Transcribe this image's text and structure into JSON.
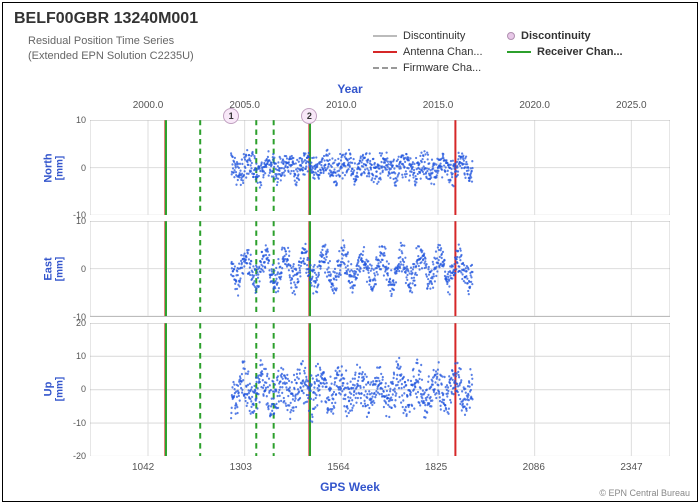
{
  "title": "BELF00GBR 13240M001",
  "subtitle_line1": "Residual Position Time Series",
  "subtitle_line2": "(Extended EPN Solution C2235U)",
  "top_axis_label": "Year",
  "bottom_axis_label": "GPS Week",
  "credit": "© EPN Central Bureau",
  "legend": {
    "items": [
      {
        "type": "line",
        "style": "solid",
        "color": "#bbbbbb",
        "label": "Discontinuity"
      },
      {
        "type": "marker",
        "color": "#e8c8e8",
        "label": "Discontinuity",
        "bold": true
      },
      {
        "type": "line",
        "style": "solid",
        "color": "#d62728",
        "label": "Antenna Chan..."
      },
      {
        "type": "line",
        "style": "solid",
        "color": "#2ca02c",
        "label": "Receiver Chan...",
        "bold": true
      },
      {
        "type": "line",
        "style": "dashed",
        "color": "#999999",
        "label": "Firmware Cha..."
      }
    ]
  },
  "year_axis": {
    "min": 1997,
    "max": 2027,
    "ticks": [
      2000,
      2005,
      2010,
      2015,
      2020,
      2025
    ]
  },
  "week_axis": {
    "min": 900,
    "max": 2450,
    "ticks": [
      1042,
      1303,
      1564,
      1825,
      2086,
      2347
    ]
  },
  "panels": [
    {
      "name": "North",
      "unit": "[mm]",
      "ylim": [
        -10,
        10
      ],
      "yticks": [
        -10,
        0,
        10
      ],
      "noise": 2.2,
      "amp": 1.0
    },
    {
      "name": "East",
      "unit": "[mm]",
      "ylim": [
        -10,
        10
      ],
      "yticks": [
        -10,
        0,
        10
      ],
      "noise": 2.5,
      "amp": 2.5
    },
    {
      "name": "Up",
      "unit": "[mm]",
      "ylim": [
        -20,
        20
      ],
      "yticks": [
        -20,
        -10,
        0,
        10,
        20
      ],
      "noise": 5.0,
      "amp": 3.0
    }
  ],
  "data_range_years": [
    2004.3,
    2016.8
  ],
  "event_lines": [
    {
      "year": 2000.9,
      "color": "#d62728",
      "style": "solid"
    },
    {
      "year": 2000.93,
      "color": "#2ca02c",
      "style": "solid"
    },
    {
      "year": 2002.7,
      "color": "#2ca02c",
      "style": "dashed"
    },
    {
      "year": 2005.6,
      "color": "#2ca02c",
      "style": "dashed"
    },
    {
      "year": 2006.5,
      "color": "#2ca02c",
      "style": "dashed"
    },
    {
      "year": 2008.35,
      "color": "#d62728",
      "style": "solid"
    },
    {
      "year": 2008.38,
      "color": "#2ca02c",
      "style": "solid"
    },
    {
      "year": 2015.9,
      "color": "#d62728",
      "style": "solid"
    }
  ],
  "discontinuity_markers": [
    {
      "label": "1",
      "year": 2004.3
    },
    {
      "label": "2",
      "year": 2008.35
    }
  ],
  "colors": {
    "points": "#2255dd",
    "grid": "#dddddd",
    "axis_text": "#3355cc"
  }
}
